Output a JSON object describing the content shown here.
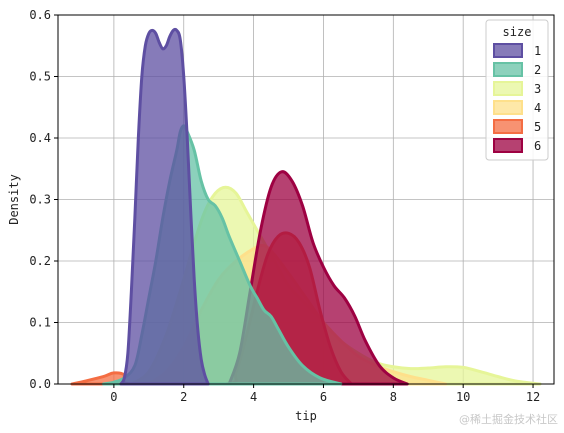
{
  "chart_data": {
    "type": "area",
    "xlabel": "tip",
    "ylabel": "Density",
    "xlim": [
      -1.6,
      12.6
    ],
    "ylim": [
      0,
      0.6
    ],
    "xticks": [
      0,
      2,
      4,
      6,
      8,
      10,
      12
    ],
    "yticks": [
      0.0,
      0.1,
      0.2,
      0.3,
      0.4,
      0.5,
      0.6
    ],
    "grid": true,
    "legend": {
      "title": "size",
      "placement": "top-right",
      "entries": [
        "1",
        "2",
        "3",
        "4",
        "5",
        "6"
      ]
    },
    "series": [
      {
        "name": "1",
        "color": "#5e4fa2",
        "points": [
          [
            0.2,
            0
          ],
          [
            0.3,
            0.01
          ],
          [
            0.4,
            0.05
          ],
          [
            0.5,
            0.15
          ],
          [
            0.6,
            0.27
          ],
          [
            0.7,
            0.4
          ],
          [
            0.8,
            0.5
          ],
          [
            0.9,
            0.55
          ],
          [
            1.0,
            0.57
          ],
          [
            1.1,
            0.575
          ],
          [
            1.2,
            0.57
          ],
          [
            1.3,
            0.555
          ],
          [
            1.4,
            0.545
          ],
          [
            1.5,
            0.55
          ],
          [
            1.6,
            0.565
          ],
          [
            1.7,
            0.575
          ],
          [
            1.8,
            0.575
          ],
          [
            1.9,
            0.56
          ],
          [
            2.0,
            0.5
          ],
          [
            2.1,
            0.4
          ],
          [
            2.2,
            0.28
          ],
          [
            2.3,
            0.17
          ],
          [
            2.4,
            0.09
          ],
          [
            2.5,
            0.04
          ],
          [
            2.6,
            0.015
          ],
          [
            2.7,
            0
          ]
        ]
      },
      {
        "name": "2",
        "color": "#66c2a5",
        "points": [
          [
            -0.3,
            0
          ],
          [
            0,
            0.003
          ],
          [
            0.3,
            0.01
          ],
          [
            0.6,
            0.03
          ],
          [
            0.8,
            0.08
          ],
          [
            1.0,
            0.14
          ],
          [
            1.2,
            0.2
          ],
          [
            1.4,
            0.27
          ],
          [
            1.6,
            0.33
          ],
          [
            1.8,
            0.38
          ],
          [
            1.9,
            0.41
          ],
          [
            2.0,
            0.42
          ],
          [
            2.1,
            0.41
          ],
          [
            2.3,
            0.38
          ],
          [
            2.5,
            0.33
          ],
          [
            2.7,
            0.3
          ],
          [
            2.9,
            0.29
          ],
          [
            3.1,
            0.27
          ],
          [
            3.3,
            0.24
          ],
          [
            3.6,
            0.2
          ],
          [
            3.9,
            0.16
          ],
          [
            4.1,
            0.14
          ],
          [
            4.3,
            0.12
          ],
          [
            4.5,
            0.11
          ],
          [
            4.7,
            0.09
          ],
          [
            5.0,
            0.06
          ],
          [
            5.4,
            0.03
          ],
          [
            5.9,
            0.01
          ],
          [
            6.5,
            0
          ]
        ]
      },
      {
        "name": "3",
        "color": "#e6f598",
        "points": [
          [
            0.5,
            0
          ],
          [
            1.0,
            0.02
          ],
          [
            1.5,
            0.08
          ],
          [
            2.0,
            0.17
          ],
          [
            2.3,
            0.23
          ],
          [
            2.6,
            0.28
          ],
          [
            2.9,
            0.31
          ],
          [
            3.2,
            0.32
          ],
          [
            3.5,
            0.31
          ],
          [
            3.8,
            0.28
          ],
          [
            4.2,
            0.24
          ],
          [
            4.6,
            0.2
          ],
          [
            5.0,
            0.16
          ],
          [
            5.5,
            0.13
          ],
          [
            6.0,
            0.1
          ],
          [
            6.5,
            0.07
          ],
          [
            7.0,
            0.05
          ],
          [
            7.5,
            0.035
          ],
          [
            8.0,
            0.028
          ],
          [
            8.5,
            0.025
          ],
          [
            9.0,
            0.026
          ],
          [
            9.5,
            0.028
          ],
          [
            10.0,
            0.027
          ],
          [
            10.5,
            0.02
          ],
          [
            11.0,
            0.012
          ],
          [
            11.5,
            0.005
          ],
          [
            12.2,
            0
          ]
        ]
      },
      {
        "name": "4",
        "color": "#fee08b",
        "points": [
          [
            1.0,
            0
          ],
          [
            1.5,
            0.02
          ],
          [
            2.0,
            0.06
          ],
          [
            2.5,
            0.12
          ],
          [
            3.0,
            0.17
          ],
          [
            3.5,
            0.2
          ],
          [
            4.0,
            0.22
          ],
          [
            4.3,
            0.225
          ],
          [
            4.6,
            0.21
          ],
          [
            5.0,
            0.18
          ],
          [
            5.5,
            0.14
          ],
          [
            6.0,
            0.1
          ],
          [
            6.5,
            0.07
          ],
          [
            7.0,
            0.045
          ],
          [
            7.5,
            0.03
          ],
          [
            8.0,
            0.02
          ],
          [
            8.5,
            0.012
          ],
          [
            9.0,
            0.006
          ],
          [
            9.5,
            0
          ]
        ]
      },
      {
        "name": "5",
        "color": "#f46d43",
        "points": [
          [
            -1.2,
            0
          ],
          [
            -0.8,
            0.005
          ],
          [
            -0.3,
            0.012
          ],
          [
            0,
            0.018
          ],
          [
            0.3,
            0.015
          ],
          [
            0.5,
            0
          ],
          [
            3.2,
            0
          ],
          [
            3.5,
            0.02
          ],
          [
            3.8,
            0.08
          ],
          [
            4.1,
            0.15
          ],
          [
            4.4,
            0.21
          ],
          [
            4.7,
            0.24
          ],
          [
            5.0,
            0.245
          ],
          [
            5.3,
            0.23
          ],
          [
            5.6,
            0.19
          ],
          [
            5.9,
            0.12
          ],
          [
            6.2,
            0.06
          ],
          [
            6.5,
            0.02
          ],
          [
            6.8,
            0
          ]
        ]
      },
      {
        "name": "6",
        "color": "#9e0142",
        "points": [
          [
            3.3,
            0
          ],
          [
            3.6,
            0.05
          ],
          [
            3.9,
            0.15
          ],
          [
            4.2,
            0.25
          ],
          [
            4.5,
            0.32
          ],
          [
            4.8,
            0.345
          ],
          [
            5.1,
            0.33
          ],
          [
            5.4,
            0.29
          ],
          [
            5.7,
            0.23
          ],
          [
            6.0,
            0.19
          ],
          [
            6.3,
            0.16
          ],
          [
            6.6,
            0.14
          ],
          [
            6.9,
            0.11
          ],
          [
            7.2,
            0.07
          ],
          [
            7.6,
            0.03
          ],
          [
            8.0,
            0.01
          ],
          [
            8.4,
            0
          ]
        ]
      }
    ]
  },
  "watermark": "@稀土掘金技术社区"
}
